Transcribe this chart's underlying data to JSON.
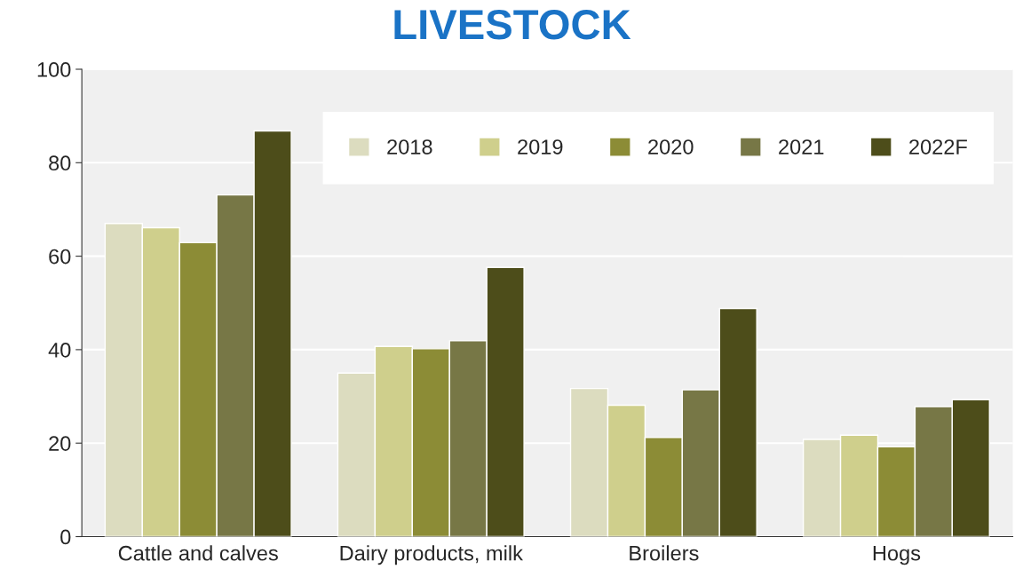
{
  "chart_data": {
    "type": "bar",
    "title": "LIVESTOCK",
    "categories": [
      "Cattle and calves",
      "Dairy products, milk",
      "Broilers",
      "Hogs"
    ],
    "series": [
      {
        "name": "2018",
        "color": "#dcdcbf",
        "values": [
          67,
          35,
          31.7,
          20.8
        ]
      },
      {
        "name": "2019",
        "color": "#cfcf8c",
        "values": [
          66.1,
          40.7,
          28.1,
          21.7
        ]
      },
      {
        "name": "2020",
        "color": "#8c8c36",
        "values": [
          62.9,
          40.2,
          21.2,
          19.2
        ]
      },
      {
        "name": "2021",
        "color": "#777746",
        "values": [
          73.1,
          41.9,
          31.4,
          27.8
        ]
      },
      {
        "name": "2022F",
        "color": "#4d4d1a",
        "values": [
          86.8,
          57.6,
          48.8,
          29.3
        ]
      }
    ],
    "ylim": [
      0,
      100
    ],
    "yticks": [
      0,
      20,
      40,
      60,
      80,
      100
    ],
    "grid": "y",
    "legend": "top right"
  }
}
